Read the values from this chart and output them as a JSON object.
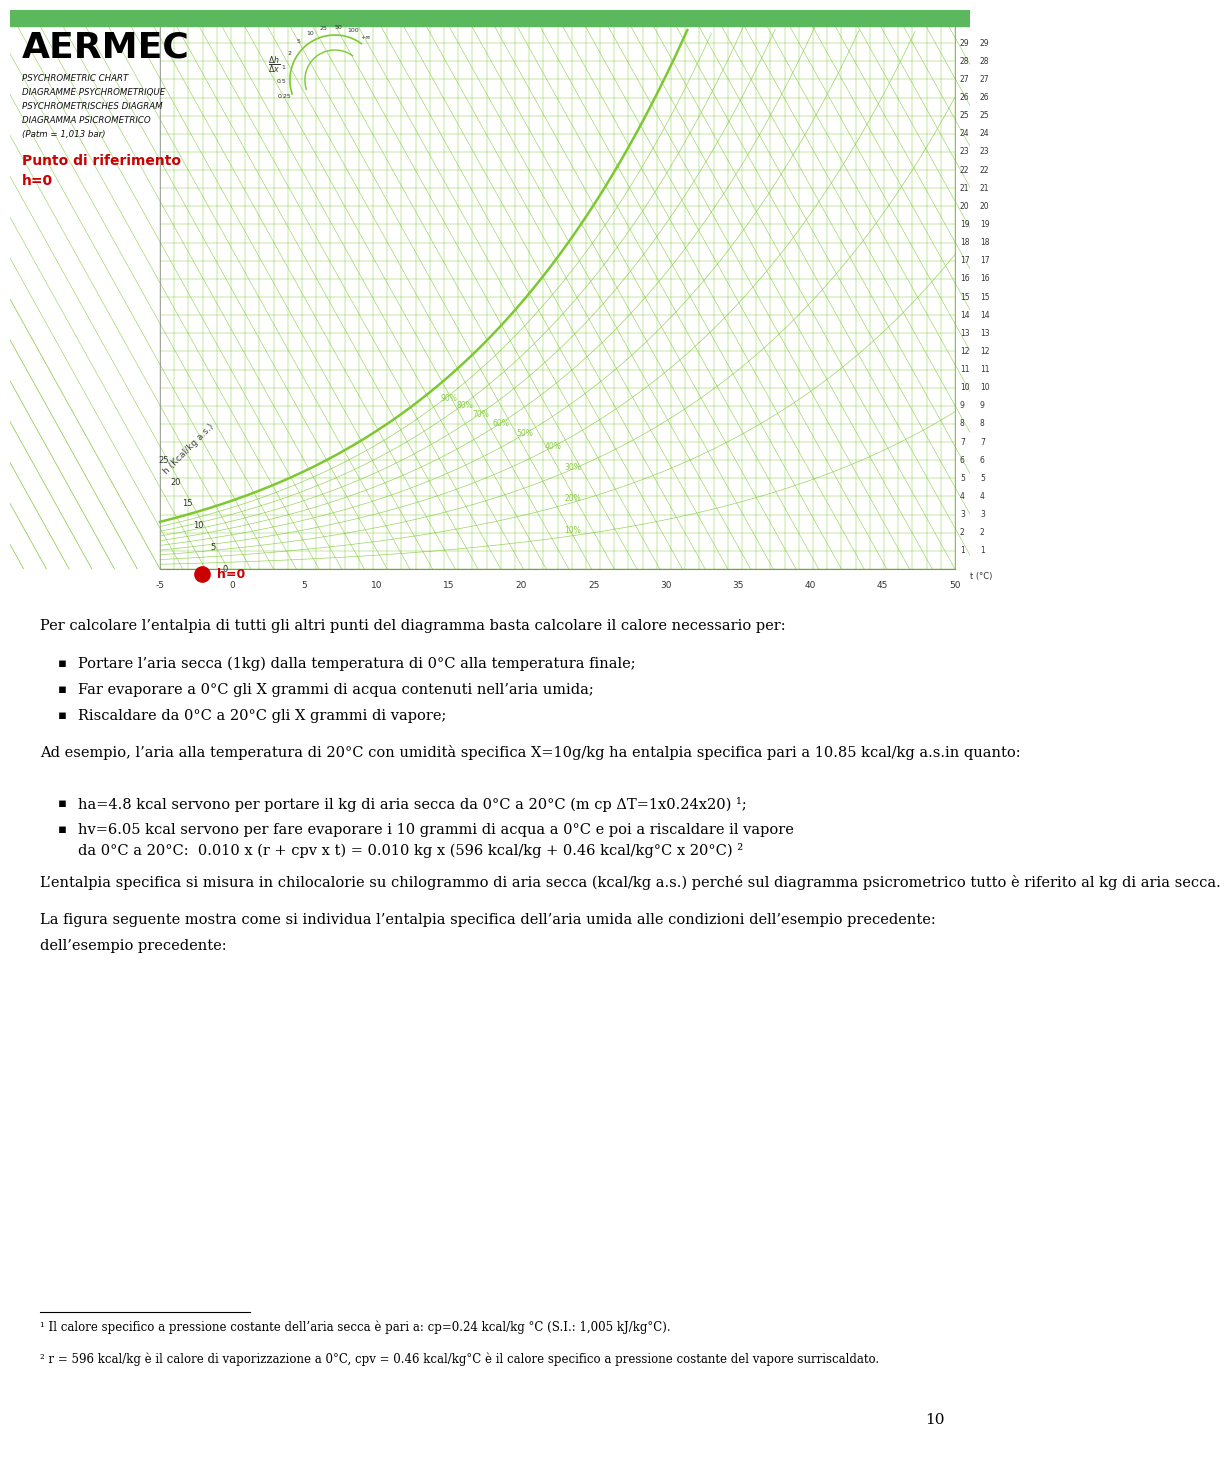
{
  "bg_color": "#ffffff",
  "top_bar_color": "#5cb85c",
  "logo_text": "AERMEC",
  "logo_color": "#000000",
  "chart_info_lines": [
    "PSYCHROMETRIC CHART",
    "DIAGRAMME PSYCHROMETRIQUE",
    "PSYCHROMETRISCHES DIAGRAM",
    "DIAGRAMMA PSICROMETRICO",
    "(Patm = 1,013 bar)"
  ],
  "ref_label_line1": "Punto di riferimento",
  "ref_label_line2": "h=0",
  "ref_label_color": "#cc0000",
  "chart_color": "#66cc00",
  "chart_bg": "#ffffff",
  "dot_color": "#cc0000",
  "dot_label": "h=0",
  "para1": "Per calcolare l’entalpia di tutti gli altri punti del diagramma basta calcolare il calore necessario per:",
  "bullets1": [
    "Portare l’aria secca (1kg) dalla temperatura di 0°C alla temperatura finale;",
    "Far evaporare a 0°C gli X grammi di acqua contenuti nell’aria umida;",
    "Riscaldare da 0°C a 20°C gli X grammi di vapore;"
  ],
  "para2": "Ad esempio, l’aria alla temperatura di 20°C con umidità specifica X=10g/kg ha entalpia specifica pari a 10.85 kcal/kg a.s.in quanto:",
  "bullets2_item1": "ha=4.8 kcal servono per portare il kg di aria secca da 0°C a 20°C (m cp ΔT=1x0.24x20) ¹;",
  "bullets2_item2": "hv=6.05 kcal servono per fare evaporare i 10 grammi di acqua a 0°C e poi a riscaldare il vapore da 0°C a 20°C:  0.010 x (r + cpv x t) = 0.010 kg x (596 kcal/kg + 0.46 kcal/kg°C x 20°C) ²",
  "para3a": "L’entalpia specifica si misura in chilocalorie su chilogrammo di aria secca (kcal/kg a.s.) perché sul diagramma psicrometrico tutto è riferito al kg di aria secca.",
  "para3b": "La figura seguente mostra come si individua l’entalpia specifica dell’aria umida alle condizioni dell’esempio precedente:",
  "fn1": "¹ Il calore specifico a pressione costante dell’aria secca è pari a: cp=0.24 kcal/kg °C (S.I.: 1,005 kJ/kg°C).",
  "fn2": "² r = 596 kcal/kg è il calore di vaporizzazione a 0°C, cpv = 0.46 kcal/kg°C è il calore specifico a pressione costante del vapore surriscaldato.",
  "page_number": "10",
  "chart_green": "#7dc832",
  "chart_green_dark": "#5a9c1a"
}
